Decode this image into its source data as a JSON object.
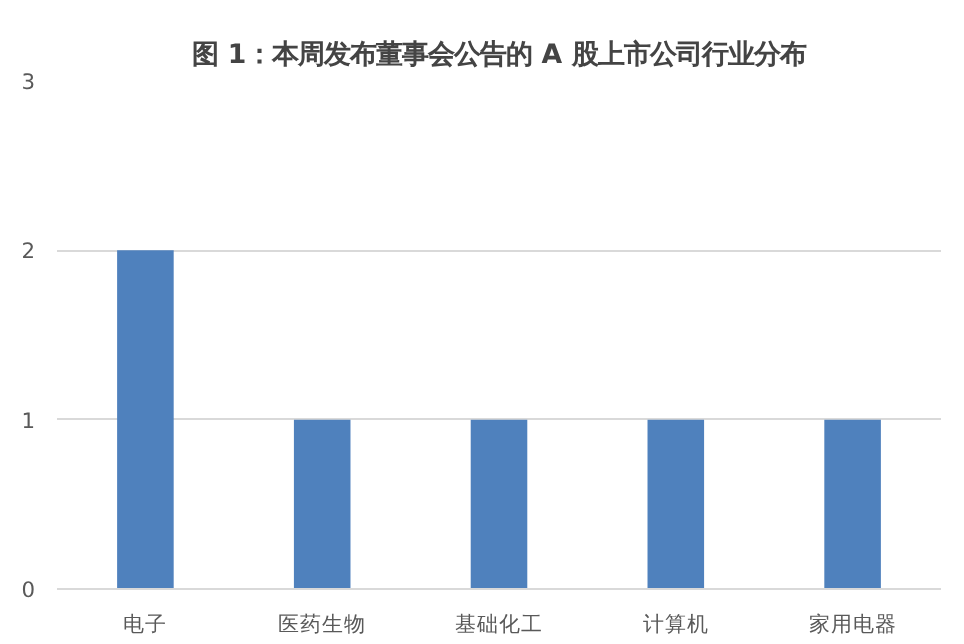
{
  "chart_data": {
    "type": "bar",
    "title": "图 1：本周发布董事会公告的 A 股上市公司行业分布",
    "categories": [
      "电子",
      "医药生物",
      "基础化工",
      "计算机",
      "家用电器"
    ],
    "values": [
      2,
      1,
      1,
      1,
      1
    ],
    "color": "#4f81bd",
    "ylim": [
      0,
      3
    ],
    "yticks": [
      0,
      1,
      2,
      3
    ],
    "grid": "y"
  }
}
